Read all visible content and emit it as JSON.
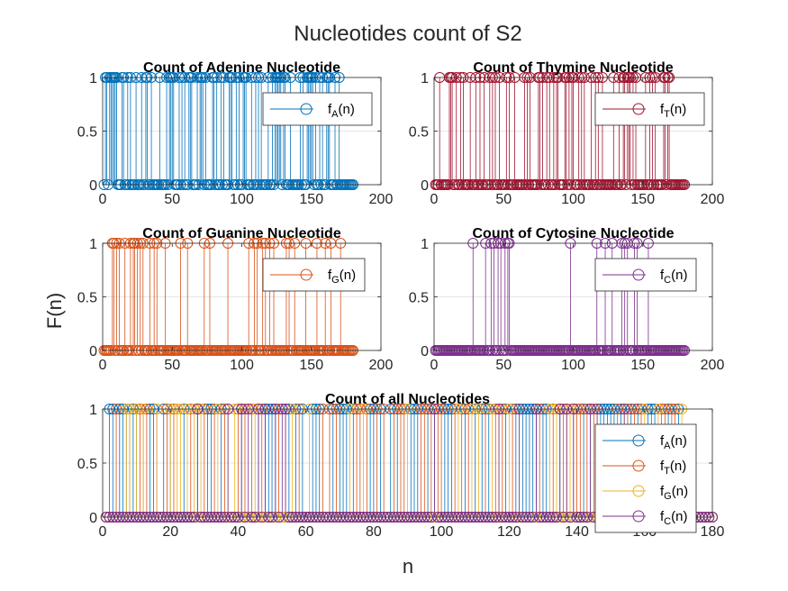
{
  "figure": {
    "title": "Nucleotides count of S2",
    "ylabel": "F(n)",
    "xlabel": "n"
  },
  "colors": {
    "A": "#0072BD",
    "T_single": "#A2142F",
    "G_single": "#D95319",
    "C": "#7E2F8E",
    "T_combined": "#D95319",
    "G_combined": "#EDB120"
  },
  "chart_data": [
    {
      "id": "adenine",
      "type": "stem",
      "title": "Count of Adenine Nucleotide",
      "xlim": [
        0,
        200
      ],
      "ylim": [
        0,
        1
      ],
      "xticks": [
        "0",
        "50",
        "100",
        "150",
        "200"
      ],
      "yticks": [
        "0",
        "0.5",
        "1"
      ],
      "legend": [
        {
          "label": "f",
          "sub": "A",
          "suffix": "(n)",
          "color": "#0072BD"
        }
      ],
      "series": [
        {
          "name": "fA(n)",
          "color": "#0072BD",
          "x_range": [
            1,
            180
          ],
          "ones": [
            2,
            3,
            5,
            6,
            7,
            8,
            9,
            10,
            14,
            15,
            18,
            20,
            24,
            28,
            31,
            32,
            35,
            41,
            46,
            48,
            49,
            50,
            51,
            55,
            57,
            59,
            62,
            63,
            64,
            68,
            70,
            71,
            72,
            74,
            79,
            80,
            82,
            85,
            87,
            91,
            92,
            93,
            96,
            98,
            101,
            102,
            103,
            107,
            110,
            112,
            114,
            119,
            122,
            124,
            125,
            126,
            127,
            128,
            130,
            131,
            135,
            142,
            144,
            147,
            148,
            149,
            150,
            151,
            153,
            156,
            158,
            161,
            162,
            163,
            167,
            170
          ]
        }
      ]
    },
    {
      "id": "thymine",
      "type": "stem",
      "title": "Count of Thymine Nucleotide",
      "xlim": [
        0,
        200
      ],
      "ylim": [
        0,
        1
      ],
      "xticks": [
        "0",
        "50",
        "100",
        "150",
        "200"
      ],
      "yticks": [
        "0",
        "0.5",
        "1"
      ],
      "legend": [
        {
          "label": "f",
          "sub": "T",
          "suffix": "(n)",
          "color": "#A2142F"
        }
      ],
      "series": [
        {
          "name": "fT(n)",
          "color": "#A2142F",
          "x_range": [
            1,
            180
          ],
          "ones": [
            4,
            11,
            12,
            13,
            16,
            19,
            21,
            26,
            30,
            33,
            36,
            40,
            42,
            44,
            47,
            52,
            54,
            58,
            65,
            67,
            69,
            75,
            76,
            78,
            81,
            83,
            86,
            88,
            89,
            94,
            95,
            97,
            99,
            100,
            104,
            106,
            108,
            113,
            116,
            118,
            121,
            129,
            133,
            136,
            137,
            139,
            140,
            141,
            143,
            145,
            152,
            155,
            157,
            159,
            165,
            166,
            168,
            169
          ]
        }
      ]
    },
    {
      "id": "guanine",
      "type": "stem",
      "title": "Count of Guanine Nucleotide",
      "xlim": [
        0,
        200
      ],
      "ylim": [
        0,
        1
      ],
      "xticks": [
        "0",
        "50",
        "100",
        "150",
        "200"
      ],
      "yticks": [
        "0",
        "0.5",
        "1"
      ],
      "legend": [
        {
          "label": "f",
          "sub": "G",
          "suffix": "(n)",
          "color": "#D95319"
        }
      ],
      "series": [
        {
          "name": "fG(n)",
          "color": "#D95319",
          "x_range": [
            1,
            180
          ],
          "ones": [
            7,
            8,
            10,
            12,
            16,
            20,
            22,
            23,
            25,
            27,
            29,
            34,
            37,
            39,
            45,
            56,
            61,
            73,
            77,
            90,
            105,
            109,
            111,
            115,
            117,
            120,
            123,
            132,
            134,
            138,
            146,
            154,
            160,
            164,
            171
          ]
        }
      ]
    },
    {
      "id": "cytosine",
      "type": "stem",
      "title": "Count of Cytosine Nucleotide",
      "xlim": [
        0,
        200
      ],
      "ylim": [
        0,
        1
      ],
      "xticks": [
        "0",
        "50",
        "100",
        "150",
        "200"
      ],
      "yticks": [
        "0",
        "0.5",
        "1"
      ],
      "legend": [
        {
          "label": "f",
          "sub": "C",
          "suffix": "(n)",
          "color": "#7E2F8E"
        }
      ],
      "series": [
        {
          "name": "fC(n)",
          "color": "#7E2F8E",
          "x_range": [
            1,
            180
          ],
          "ones": [
            28,
            37,
            41,
            43,
            46,
            48,
            51,
            53,
            54,
            98,
            117,
            123,
            128,
            135,
            137,
            139,
            144,
            146,
            154
          ]
        }
      ]
    },
    {
      "id": "all",
      "type": "stem",
      "title": "Count of all Nucleotides",
      "xlim": [
        0,
        180
      ],
      "ylim": [
        0,
        1
      ],
      "xticks": [
        "0",
        "20",
        "40",
        "60",
        "80",
        "100",
        "120",
        "140",
        "160",
        "180"
      ],
      "yticks": [
        "0",
        "0.5",
        "1"
      ],
      "legend": [
        {
          "label": "f",
          "sub": "A",
          "suffix": "(n)",
          "color": "#0072BD"
        },
        {
          "label": "f",
          "sub": "T",
          "suffix": "(n)",
          "color": "#D95319"
        },
        {
          "label": "f",
          "sub": "G",
          "suffix": "(n)",
          "color": "#EDB120"
        },
        {
          "label": "f",
          "sub": "C",
          "suffix": "(n)",
          "color": "#7E2F8E"
        }
      ],
      "combined": true,
      "series_ref": [
        "adenine",
        "thymine",
        "guanine",
        "cytosine"
      ],
      "series_colors": [
        "#0072BD",
        "#D95319",
        "#EDB120",
        "#7E2F8E"
      ]
    }
  ]
}
